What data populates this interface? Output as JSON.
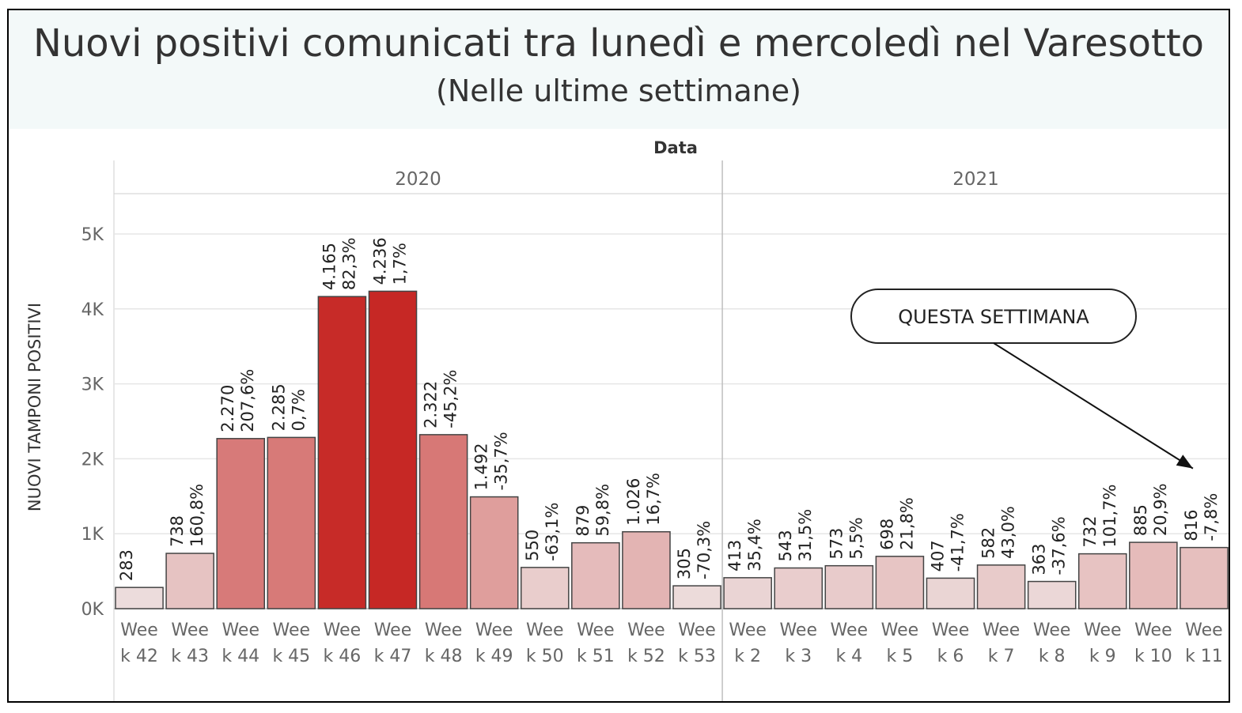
{
  "header": {
    "title": "Nuovi positivi comunicati tra lunedì e mercoledì nel Varesotto",
    "subtitle": "(Nelle ultime settimane)"
  },
  "chart_data": {
    "type": "bar",
    "title": "Nuovi positivi comunicati tra lunedì e mercoledì nel Varesotto",
    "subtitle": "(Nelle ultime settimane)",
    "xlabel": "Data",
    "ylabel": "NUOVI TAMPONI POSITIVI",
    "ylim": [
      0,
      5500
    ],
    "yticks": [
      {
        "value": 0,
        "label": "0K"
      },
      {
        "value": 1000,
        "label": "1K"
      },
      {
        "value": 2000,
        "label": "2K"
      },
      {
        "value": 3000,
        "label": "3K"
      },
      {
        "value": 4000,
        "label": "4K"
      },
      {
        "value": 5000,
        "label": "5K"
      }
    ],
    "grid": true,
    "groups": [
      {
        "year": "2020",
        "bars": [
          {
            "label": "Week 42",
            "value": 283,
            "value_label": "283",
            "change_label": ""
          },
          {
            "label": "Week 43",
            "value": 738,
            "value_label": "738",
            "change_label": "160,8%"
          },
          {
            "label": "Week 44",
            "value": 2270,
            "value_label": "2.270",
            "change_label": "207,6%"
          },
          {
            "label": "Week 45",
            "value": 2285,
            "value_label": "2.285",
            "change_label": "0,7%"
          },
          {
            "label": "Week 46",
            "value": 4165,
            "value_label": "4.165",
            "change_label": "82,3%"
          },
          {
            "label": "Week 47",
            "value": 4236,
            "value_label": "4.236",
            "change_label": "1,7%"
          },
          {
            "label": "Week 48",
            "value": 2322,
            "value_label": "2.322",
            "change_label": "-45,2%"
          },
          {
            "label": "Week 49",
            "value": 1492,
            "value_label": "1.492",
            "change_label": "-35,7%"
          },
          {
            "label": "Week 50",
            "value": 550,
            "value_label": "550",
            "change_label": "-63,1%"
          },
          {
            "label": "Week 51",
            "value": 879,
            "value_label": "879",
            "change_label": "59,8%"
          },
          {
            "label": "Week 52",
            "value": 1026,
            "value_label": "1.026",
            "change_label": "16,7%"
          },
          {
            "label": "Week 53",
            "value": 305,
            "value_label": "305",
            "change_label": "-70,3%"
          }
        ]
      },
      {
        "year": "2021",
        "bars": [
          {
            "label": "Week 2",
            "value": 413,
            "value_label": "413",
            "change_label": "35,4%"
          },
          {
            "label": "Week 3",
            "value": 543,
            "value_label": "543",
            "change_label": "31,5%"
          },
          {
            "label": "Week 4",
            "value": 573,
            "value_label": "573",
            "change_label": "5,5%"
          },
          {
            "label": "Week 5",
            "value": 698,
            "value_label": "698",
            "change_label": "21,8%"
          },
          {
            "label": "Week 6",
            "value": 407,
            "value_label": "407",
            "change_label": "-41,7%"
          },
          {
            "label": "Week 7",
            "value": 582,
            "value_label": "582",
            "change_label": "43,0%"
          },
          {
            "label": "Week 8",
            "value": 363,
            "value_label": "363",
            "change_label": "-37,6%"
          },
          {
            "label": "Week 9",
            "value": 732,
            "value_label": "732",
            "change_label": "101,7%"
          },
          {
            "label": "Week 10",
            "value": 885,
            "value_label": "885",
            "change_label": "20,9%"
          },
          {
            "label": "Week 11",
            "value": 816,
            "value_label": "816",
            "change_label": "-7,8%"
          }
        ]
      }
    ],
    "annotation": {
      "text": "QUESTA SETTIMANA",
      "points_to": "Week 11"
    },
    "colors": {
      "low": "#f0f0f0",
      "high": "#c62825",
      "border": "#444444",
      "grid": "#e6e6e6"
    }
  }
}
